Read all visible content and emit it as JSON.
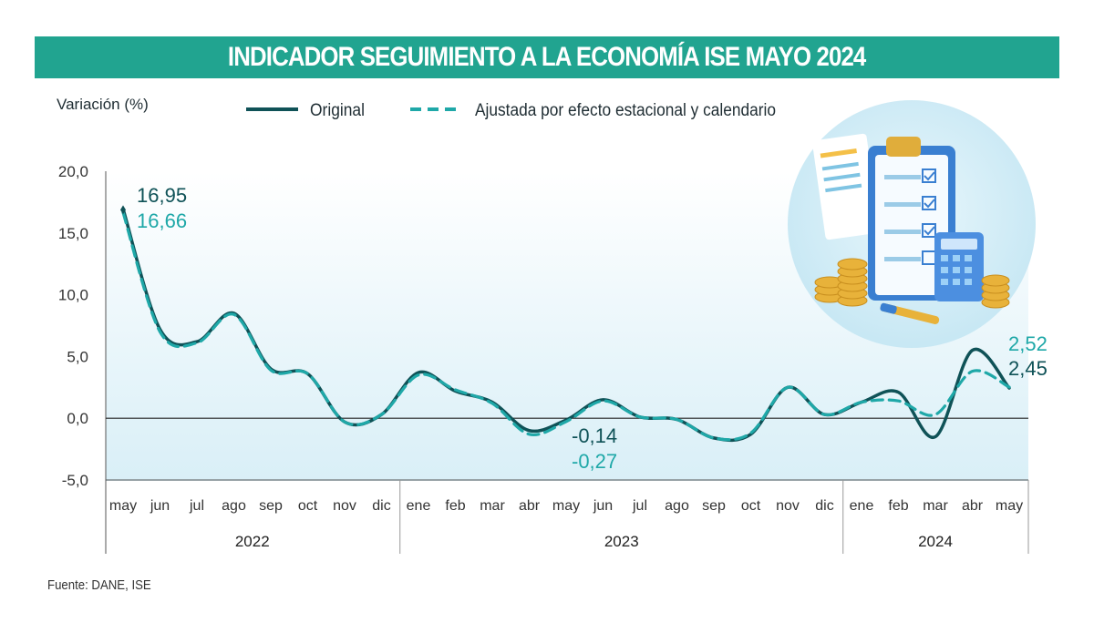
{
  "title": "INDICADOR SEGUIMIENTO A LA ECONOMÍA ISE MAYO 2024",
  "source": "Fuente: DANE, ISE",
  "colors": {
    "header": "#21a490",
    "original": "#0f5257",
    "adjusted": "#1fa8a8",
    "bg_gradient": "#ddf0f8"
  },
  "illustration": {
    "icon": "clipboard-checklist-calculator-coins-icon"
  },
  "chart_data": {
    "type": "line",
    "ylabel": "Variación (%)",
    "ylim": [
      -5,
      20
    ],
    "yticks": [
      "20,0",
      "15,0",
      "10,0",
      "5,0",
      "0,0",
      "-5,0"
    ],
    "ytick_values": [
      20,
      15,
      10,
      5,
      0,
      -5
    ],
    "categories": [
      "may",
      "jun",
      "jul",
      "ago",
      "sep",
      "oct",
      "nov",
      "dic",
      "ene",
      "feb",
      "mar",
      "abr",
      "may",
      "jun",
      "jul",
      "ago",
      "sep",
      "oct",
      "nov",
      "dic",
      "ene",
      "feb",
      "mar",
      "abr",
      "may"
    ],
    "year_groups": [
      {
        "label": "2022",
        "from": 0,
        "to": 7
      },
      {
        "label": "2023",
        "from": 8,
        "to": 19
      },
      {
        "label": "2024",
        "from": 20,
        "to": 24
      }
    ],
    "legend_position": "top",
    "series": [
      {
        "name": "Original",
        "style": "solid",
        "values": [
          16.95,
          7.2,
          6.2,
          8.5,
          4.0,
          3.6,
          -0.3,
          0.3,
          3.7,
          2.2,
          1.3,
          -1.0,
          -0.14,
          1.5,
          0.1,
          -0.1,
          -1.6,
          -1.3,
          2.5,
          0.3,
          1.3,
          2.1,
          -1.5,
          5.5,
          2.45
        ]
      },
      {
        "name": "Ajustada por efecto estacional y calendario",
        "style": "dashed",
        "values": [
          16.66,
          7.0,
          6.1,
          8.4,
          3.9,
          3.6,
          -0.3,
          0.3,
          3.5,
          2.3,
          1.2,
          -1.3,
          -0.27,
          1.4,
          0.1,
          -0.1,
          -1.6,
          -1.2,
          2.5,
          0.3,
          1.3,
          1.4,
          0.3,
          3.8,
          2.52
        ]
      }
    ],
    "annotations": [
      {
        "series": 0,
        "index": 0,
        "text": "16,95"
      },
      {
        "series": 1,
        "index": 0,
        "text": "16,66"
      },
      {
        "series": 0,
        "index": 12,
        "text": "-0,14"
      },
      {
        "series": 1,
        "index": 12,
        "text": "-0,27"
      },
      {
        "series": 1,
        "index": 24,
        "text": "2,52"
      },
      {
        "series": 0,
        "index": 24,
        "text": "2,45"
      }
    ]
  }
}
